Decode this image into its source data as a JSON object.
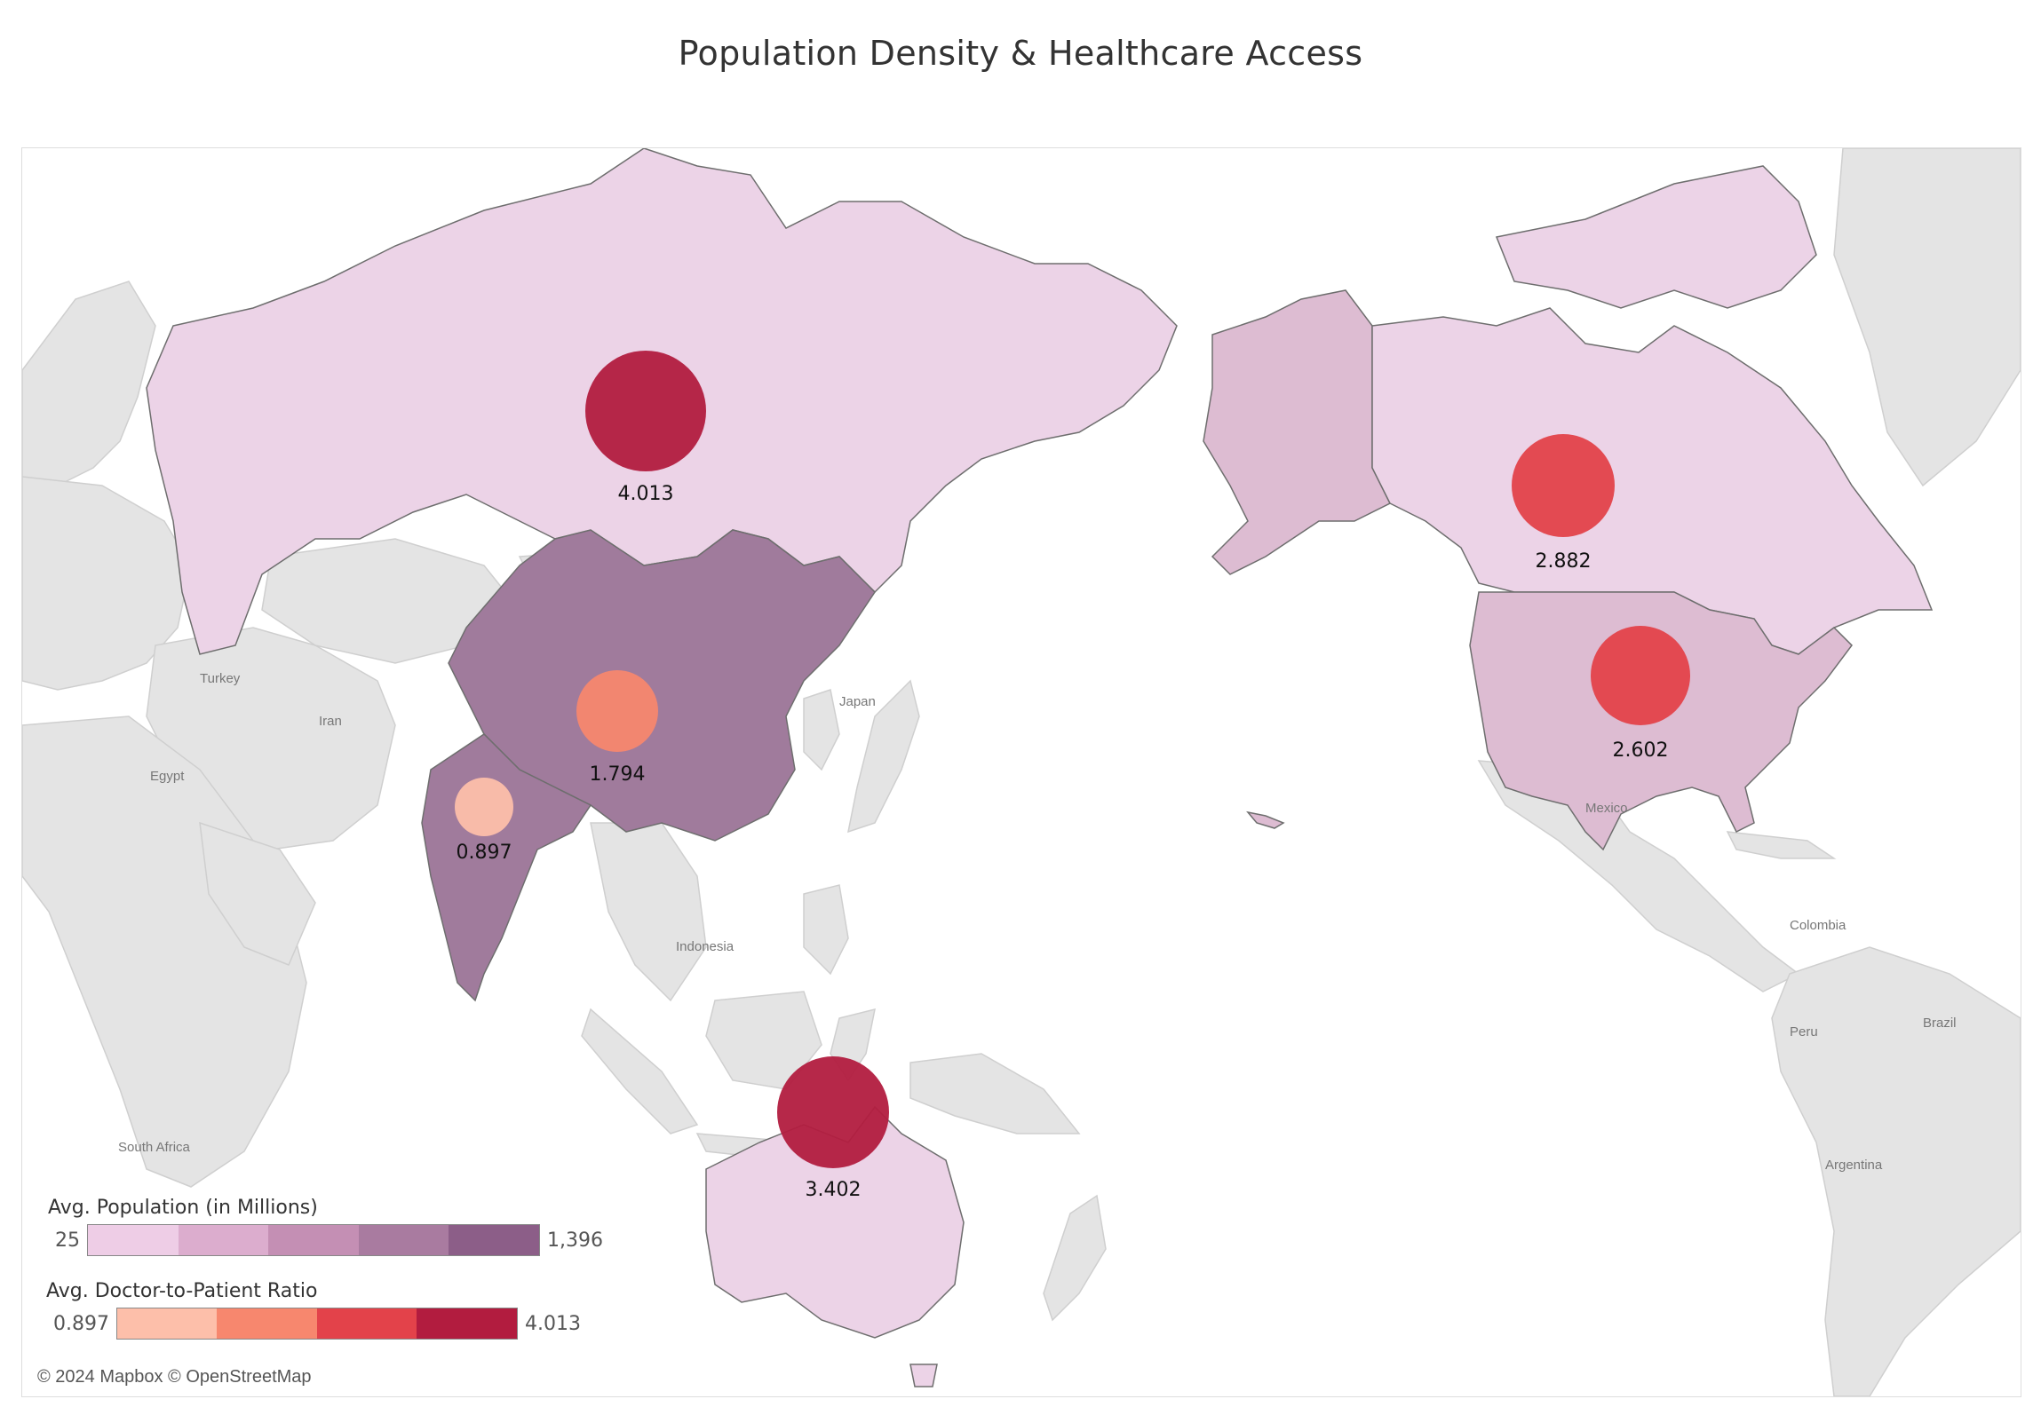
{
  "title": "Population Density & Healthcare Access",
  "attribution": "© 2024 Mapbox © OpenStreetMap",
  "colors": {
    "land_base": "#e4e4e4",
    "land_border": "#c9c9c9",
    "country_border": "#6e6e6e"
  },
  "place_labels": [
    "Turkey",
    "Iran",
    "Egypt",
    "Japan",
    "Indonesia",
    "South Africa",
    "Mexico",
    "Colombia",
    "Peru",
    "Brazil",
    "Argentina"
  ],
  "countries": [
    {
      "name": "Russia",
      "population_class": 1,
      "ratio": 4.013,
      "ratio_label": "4.013"
    },
    {
      "name": "China",
      "population_class": 4,
      "ratio": 1.794,
      "ratio_label": "1.794"
    },
    {
      "name": "India",
      "population_class": 4,
      "ratio": 0.897,
      "ratio_label": "0.897"
    },
    {
      "name": "Australia",
      "population_class": 1,
      "ratio": 3.402,
      "ratio_label": "3.402"
    },
    {
      "name": "Canada",
      "population_class": 1,
      "ratio": 2.882,
      "ratio_label": "2.882"
    },
    {
      "name": "United States",
      "population_class": 2,
      "ratio": 2.602,
      "ratio_label": "2.602"
    },
    {
      "name": "Alaska",
      "population_class": 2
    }
  ],
  "legend_population": {
    "title": "Avg. Population (in Millions)",
    "min": "25",
    "max": "1,396",
    "colors": [
      "#eecde6",
      "#dcadce",
      "#c48fb4",
      "#a97ba0",
      "#8c5e88"
    ]
  },
  "legend_ratio": {
    "title": "Avg. Doctor-to-Patient Ratio",
    "min": "0.897",
    "max": "4.013",
    "colors": [
      "#fdbfaa",
      "#f7876e",
      "#e3424a",
      "#b21c3f"
    ]
  }
}
